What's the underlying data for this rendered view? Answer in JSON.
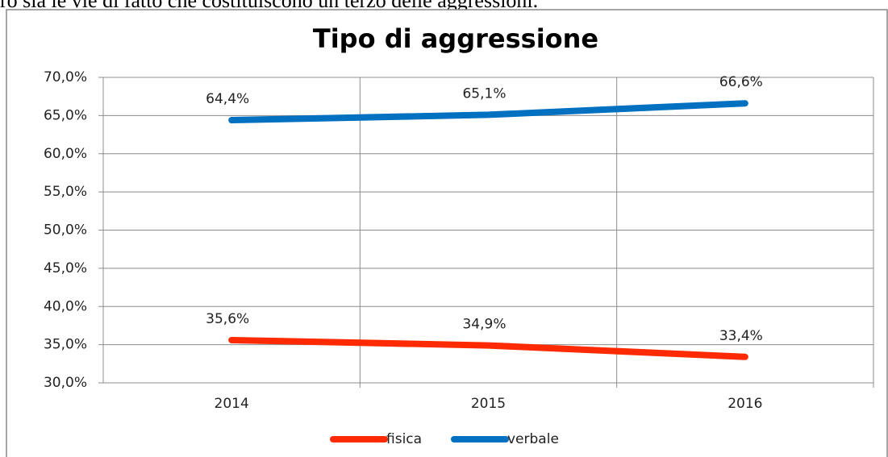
{
  "page_text": "ro sia le vie di fatto che costituiscono un terzo delle aggressioni.",
  "chart_data": {
    "type": "line",
    "title": "Tipo di aggressione",
    "categories": [
      "2014",
      "2015",
      "2016"
    ],
    "series": [
      {
        "name": "fisica",
        "color": "#ff2a00",
        "values": [
          35.6,
          34.9,
          33.4
        ],
        "value_labels": [
          "35,6%",
          "34,9%",
          "33,4%"
        ]
      },
      {
        "name": "verbale",
        "color": "#0070c0",
        "values": [
          64.4,
          65.1,
          66.6
        ],
        "value_labels": [
          "64,4%",
          "65,1%",
          "66,6%"
        ]
      }
    ],
    "ylim": [
      30,
      70
    ],
    "yticks": [
      {
        "value": 30,
        "label": "30,0%"
      },
      {
        "value": 35,
        "label": "35,0%"
      },
      {
        "value": 40,
        "label": "40,0%"
      },
      {
        "value": 45,
        "label": "45,0%"
      },
      {
        "value": 50,
        "label": "50,0%"
      },
      {
        "value": 55,
        "label": "55,0%"
      },
      {
        "value": 60,
        "label": "60,0%"
      },
      {
        "value": 65,
        "label": "65,0%"
      },
      {
        "value": 70,
        "label": "70,0%"
      }
    ],
    "grid": true,
    "legend": "bottom"
  }
}
